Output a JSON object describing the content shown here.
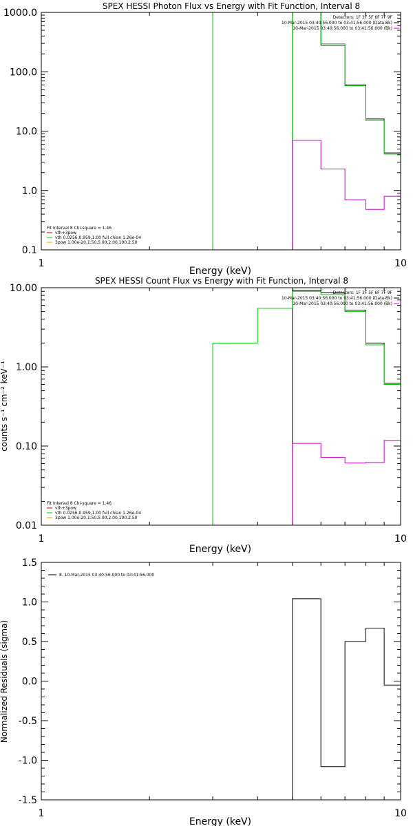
{
  "chart_data": [
    {
      "type": "line",
      "step": true,
      "title": "SPEX HESSI Photon Flux vs Energy with Fit Function, Interval 8",
      "xlabel": "Energy (keV)",
      "ylabel": "",
      "xlim": [
        1,
        10
      ],
      "ylim": [
        0.1,
        1000
      ],
      "xscale": "log",
      "yscale": "log",
      "x_ticks": [
        {
          "v": 1,
          "label": "1"
        },
        {
          "v": 10,
          "label": "10"
        }
      ],
      "y_ticks": [
        {
          "v": 0.1,
          "label": "0.1"
        },
        {
          "v": 1,
          "label": "1.0"
        },
        {
          "v": 10,
          "label": "10.0"
        },
        {
          "v": 100,
          "label": "100.0"
        },
        {
          "v": 1000,
          "label": "1000.0"
        }
      ],
      "legend_tr": [
        {
          "text": "Detectors: 1F 3F 5F 6F 7F 9F",
          "color": ""
        },
        {
          "text": "10-Mar-2015 03:40:56.000 to 03:41:56.000 (Data-Bk)",
          "color": "#000000"
        },
        {
          "text": "10-Mar-2015 03:40:56.000 to 03:41:56.000 (Bk)",
          "color": "#cc00cc"
        }
      ],
      "legend_bl": [
        {
          "text": "Fit Interval 8   Chi-square = 1.46",
          "color": ""
        },
        {
          "text": "vth+3pow",
          "color": "#cc0000"
        },
        {
          "text": "vth 0.0256,0.959,1.00  full chian 1.26e-04",
          "color": "#00bb00"
        },
        {
          "text": "3pow 1.00e-20,1.50,5.00,2.00,100,2.50",
          "color": "#ddaa00"
        }
      ],
      "series": [
        {
          "color": "#00cc00",
          "edges": [
            3,
            3
          ],
          "values": [
            0.1
          ],
          "drop": true
        },
        {
          "color": "#00cc00",
          "edges": [
            5,
            5
          ],
          "values": [
            1000
          ],
          "dashed": true
        },
        {
          "color": "#000000",
          "edges": [
            5,
            6,
            7,
            8,
            9,
            10
          ],
          "values": [
            1000,
            280,
            60,
            16,
            4.3
          ],
          "drop": true
        },
        {
          "color": "#00cc00",
          "edges": [
            5,
            6,
            7,
            8,
            9,
            10
          ],
          "values": [
            1000,
            295,
            58,
            15,
            4.1
          ],
          "drop": true
        },
        {
          "color": "#cc00cc",
          "edges": [
            5,
            6,
            7,
            8,
            9,
            10
          ],
          "values": [
            7,
            2.3,
            0.7,
            0.48,
            0.8
          ],
          "drop": true
        }
      ]
    },
    {
      "type": "line",
      "step": true,
      "title": "SPEX HESSI Count Flux vs Energy with Fit Function, Interval 8",
      "xlabel": "Energy (keV)",
      "ylabel": "counts s⁻¹ cm⁻² keV⁻¹",
      "xlim": [
        1,
        10
      ],
      "ylim": [
        0.01,
        10
      ],
      "xscale": "log",
      "yscale": "log",
      "x_ticks": [
        {
          "v": 1,
          "label": "1"
        },
        {
          "v": 10,
          "label": "10"
        }
      ],
      "y_ticks": [
        {
          "v": 0.01,
          "label": "0.01"
        },
        {
          "v": 0.1,
          "label": "0.10"
        },
        {
          "v": 1,
          "label": "1.00"
        },
        {
          "v": 10,
          "label": "10.00"
        }
      ],
      "legend_tr": [
        {
          "text": "Detectors: 1F 3F 5F 6F 7F 9F",
          "color": ""
        },
        {
          "text": "10-Mar-2015 03:40:56.000 to 03:41:56.000 (Data-Bk)",
          "color": "#000000"
        },
        {
          "text": "10-Mar-2015 03:40:56.000 to 03:41:56.000 (Bk)",
          "color": "#cc00cc"
        }
      ],
      "legend_bl": [
        {
          "text": "Fit Interval 8   Chi-square = 1.46",
          "color": ""
        },
        {
          "text": "vth+3pow",
          "color": "#cc0000"
        },
        {
          "text": "vth 0.0256,0.959,1.00  full chian 1.26e-04",
          "color": "#00bb00"
        },
        {
          "text": "3pow 1.00e-20,1.50,5.00,2.00,100,2.50",
          "color": "#ddaa00"
        }
      ],
      "series": [
        {
          "color": "#000000",
          "edges": [
            5,
            6,
            7,
            8,
            9,
            10
          ],
          "values": [
            9.3,
            8.7,
            5.2,
            2.0,
            0.62
          ],
          "drop": true
        },
        {
          "color": "#00cc00",
          "edges": [
            3,
            4,
            5,
            6,
            7,
            8,
            9,
            10
          ],
          "values": [
            2.0,
            5.5,
            9.0,
            8.2,
            5.0,
            1.9,
            0.6
          ],
          "drop": true
        },
        {
          "color": "#cc00cc",
          "edges": [
            5,
            6,
            7,
            8,
            9,
            10
          ],
          "values": [
            0.108,
            0.072,
            0.061,
            0.062,
            0.118
          ],
          "drop": true
        }
      ]
    },
    {
      "type": "line",
      "step": true,
      "title": "",
      "xlabel": "Energy (keV)",
      "ylabel": "Normalized Residuals (sigma)",
      "xlim": [
        1,
        10
      ],
      "ylim": [
        -1.5,
        1.5
      ],
      "xscale": "log",
      "yscale": "linear",
      "x_ticks": [
        {
          "v": 1,
          "label": "1"
        },
        {
          "v": 10,
          "label": "10"
        }
      ],
      "y_ticks": [
        {
          "v": -1.5,
          "label": "-1.5"
        },
        {
          "v": -1.0,
          "label": "-1.0"
        },
        {
          "v": -0.5,
          "label": "-0.5"
        },
        {
          "v": 0.0,
          "label": "0.0"
        },
        {
          "v": 0.5,
          "label": "0.5"
        },
        {
          "v": 1.0,
          "label": "1.0"
        },
        {
          "v": 1.5,
          "label": "1.5"
        }
      ],
      "legend_tl": [
        {
          "text": "8. 10-Mar-2015 03:40:56.000 to 03:41:56.000",
          "color": "#000000"
        }
      ],
      "series": [
        {
          "color": "#000000",
          "edges": [
            5,
            6,
            7,
            8,
            9,
            10
          ],
          "values": [
            1.04,
            -1.08,
            0.5,
            0.67,
            -0.05
          ],
          "drop": true
        }
      ]
    }
  ]
}
